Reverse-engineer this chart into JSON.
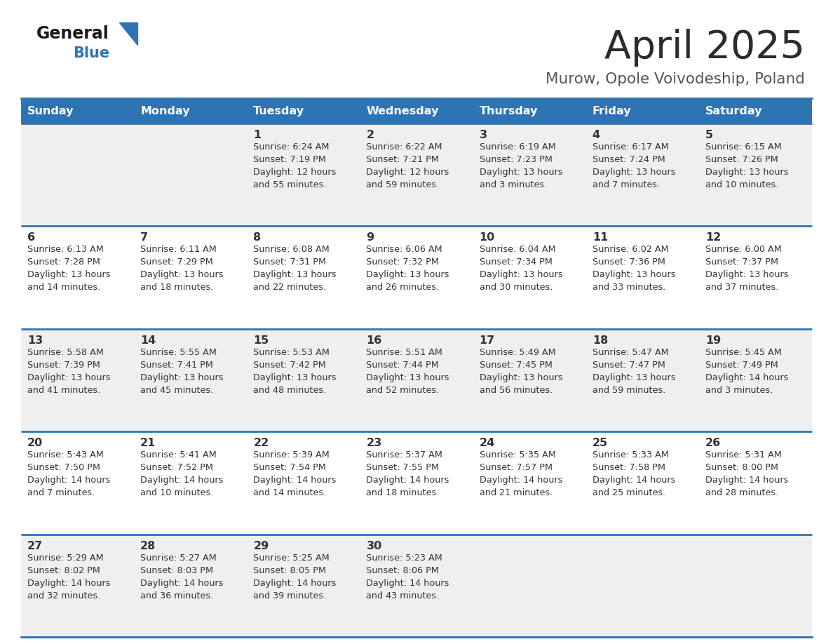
{
  "title": "April 2025",
  "subtitle": "Murow, Opole Voivodeship, Poland",
  "days_of_week": [
    "Sunday",
    "Monday",
    "Tuesday",
    "Wednesday",
    "Thursday",
    "Friday",
    "Saturday"
  ],
  "header_bg": "#2E74B5",
  "header_text_color": "#FFFFFF",
  "row_bg_light": "#EFEFEF",
  "row_bg_white": "#FFFFFF",
  "cell_text_color": "#333333",
  "day_num_color": "#333333",
  "title_color": "#2B2B2B",
  "subtitle_color": "#555555",
  "logo_general_color": "#1A1A1A",
  "logo_blue_color": "#2E74B5",
  "divider_color": "#2E74B5",
  "calendar": [
    [
      {
        "day": null,
        "info": ""
      },
      {
        "day": null,
        "info": ""
      },
      {
        "day": 1,
        "info": "Sunrise: 6:24 AM\nSunset: 7:19 PM\nDaylight: 12 hours\nand 55 minutes."
      },
      {
        "day": 2,
        "info": "Sunrise: 6:22 AM\nSunset: 7:21 PM\nDaylight: 12 hours\nand 59 minutes."
      },
      {
        "day": 3,
        "info": "Sunrise: 6:19 AM\nSunset: 7:23 PM\nDaylight: 13 hours\nand 3 minutes."
      },
      {
        "day": 4,
        "info": "Sunrise: 6:17 AM\nSunset: 7:24 PM\nDaylight: 13 hours\nand 7 minutes."
      },
      {
        "day": 5,
        "info": "Sunrise: 6:15 AM\nSunset: 7:26 PM\nDaylight: 13 hours\nand 10 minutes."
      }
    ],
    [
      {
        "day": 6,
        "info": "Sunrise: 6:13 AM\nSunset: 7:28 PM\nDaylight: 13 hours\nand 14 minutes."
      },
      {
        "day": 7,
        "info": "Sunrise: 6:11 AM\nSunset: 7:29 PM\nDaylight: 13 hours\nand 18 minutes."
      },
      {
        "day": 8,
        "info": "Sunrise: 6:08 AM\nSunset: 7:31 PM\nDaylight: 13 hours\nand 22 minutes."
      },
      {
        "day": 9,
        "info": "Sunrise: 6:06 AM\nSunset: 7:32 PM\nDaylight: 13 hours\nand 26 minutes."
      },
      {
        "day": 10,
        "info": "Sunrise: 6:04 AM\nSunset: 7:34 PM\nDaylight: 13 hours\nand 30 minutes."
      },
      {
        "day": 11,
        "info": "Sunrise: 6:02 AM\nSunset: 7:36 PM\nDaylight: 13 hours\nand 33 minutes."
      },
      {
        "day": 12,
        "info": "Sunrise: 6:00 AM\nSunset: 7:37 PM\nDaylight: 13 hours\nand 37 minutes."
      }
    ],
    [
      {
        "day": 13,
        "info": "Sunrise: 5:58 AM\nSunset: 7:39 PM\nDaylight: 13 hours\nand 41 minutes."
      },
      {
        "day": 14,
        "info": "Sunrise: 5:55 AM\nSunset: 7:41 PM\nDaylight: 13 hours\nand 45 minutes."
      },
      {
        "day": 15,
        "info": "Sunrise: 5:53 AM\nSunset: 7:42 PM\nDaylight: 13 hours\nand 48 minutes."
      },
      {
        "day": 16,
        "info": "Sunrise: 5:51 AM\nSunset: 7:44 PM\nDaylight: 13 hours\nand 52 minutes."
      },
      {
        "day": 17,
        "info": "Sunrise: 5:49 AM\nSunset: 7:45 PM\nDaylight: 13 hours\nand 56 minutes."
      },
      {
        "day": 18,
        "info": "Sunrise: 5:47 AM\nSunset: 7:47 PM\nDaylight: 13 hours\nand 59 minutes."
      },
      {
        "day": 19,
        "info": "Sunrise: 5:45 AM\nSunset: 7:49 PM\nDaylight: 14 hours\nand 3 minutes."
      }
    ],
    [
      {
        "day": 20,
        "info": "Sunrise: 5:43 AM\nSunset: 7:50 PM\nDaylight: 14 hours\nand 7 minutes."
      },
      {
        "day": 21,
        "info": "Sunrise: 5:41 AM\nSunset: 7:52 PM\nDaylight: 14 hours\nand 10 minutes."
      },
      {
        "day": 22,
        "info": "Sunrise: 5:39 AM\nSunset: 7:54 PM\nDaylight: 14 hours\nand 14 minutes."
      },
      {
        "day": 23,
        "info": "Sunrise: 5:37 AM\nSunset: 7:55 PM\nDaylight: 14 hours\nand 18 minutes."
      },
      {
        "day": 24,
        "info": "Sunrise: 5:35 AM\nSunset: 7:57 PM\nDaylight: 14 hours\nand 21 minutes."
      },
      {
        "day": 25,
        "info": "Sunrise: 5:33 AM\nSunset: 7:58 PM\nDaylight: 14 hours\nand 25 minutes."
      },
      {
        "day": 26,
        "info": "Sunrise: 5:31 AM\nSunset: 8:00 PM\nDaylight: 14 hours\nand 28 minutes."
      }
    ],
    [
      {
        "day": 27,
        "info": "Sunrise: 5:29 AM\nSunset: 8:02 PM\nDaylight: 14 hours\nand 32 minutes."
      },
      {
        "day": 28,
        "info": "Sunrise: 5:27 AM\nSunset: 8:03 PM\nDaylight: 14 hours\nand 36 minutes."
      },
      {
        "day": 29,
        "info": "Sunrise: 5:25 AM\nSunset: 8:05 PM\nDaylight: 14 hours\nand 39 minutes."
      },
      {
        "day": 30,
        "info": "Sunrise: 5:23 AM\nSunset: 8:06 PM\nDaylight: 14 hours\nand 43 minutes."
      },
      {
        "day": null,
        "info": ""
      },
      {
        "day": null,
        "info": ""
      },
      {
        "day": null,
        "info": ""
      }
    ]
  ],
  "row_backgrounds": [
    "light",
    "white",
    "light",
    "white",
    "light"
  ]
}
